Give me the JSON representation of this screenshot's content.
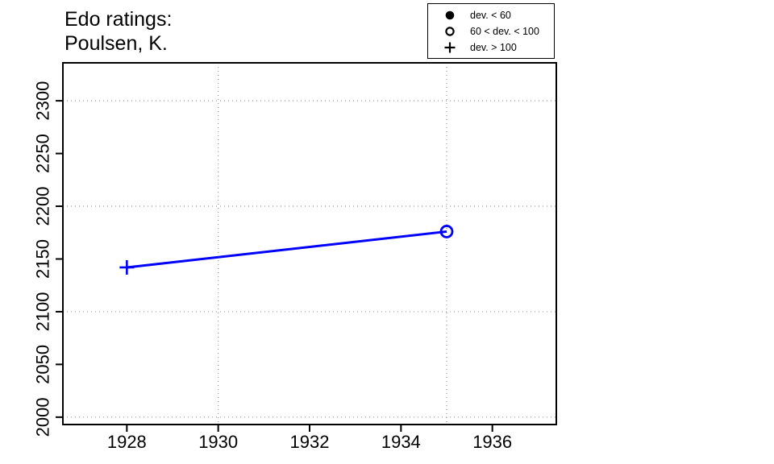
{
  "chart_data": {
    "type": "line",
    "title_lines": [
      "Edo ratings:",
      "Poulsen, K."
    ],
    "series": [
      {
        "name": "Poulsen, K.",
        "color": "#0000ff",
        "points": [
          {
            "x": 1928,
            "y": 2142,
            "symbol": "plus",
            "dev_class": "dev. > 100"
          },
          {
            "x": 1935,
            "y": 2176,
            "symbol": "open-circle",
            "dev_class": "60 < dev. < 100"
          }
        ]
      }
    ],
    "x_ticks": [
      "1928",
      "1930",
      "1932",
      "1934",
      "1936"
    ],
    "y_ticks": [
      "2000",
      "2050",
      "2100",
      "2150",
      "2200",
      "2250",
      "2300"
    ],
    "grid_x": [
      1930,
      1935
    ],
    "grid_y": [
      2000,
      2100,
      2200,
      2300
    ],
    "x_range": [
      1926.6,
      1937.4
    ],
    "y_range": [
      1993,
      2336
    ],
    "grid": true,
    "legend": {
      "position": "top-right",
      "items": [
        {
          "symbol": "filled-circle",
          "label": "dev. < 60"
        },
        {
          "symbol": "open-circle",
          "label": "60 < dev. < 100"
        },
        {
          "symbol": "plus",
          "label": "dev. > 100"
        }
      ]
    },
    "colors": {
      "line": "#0000ff",
      "grid": "#999999",
      "axis": "#000000"
    }
  }
}
